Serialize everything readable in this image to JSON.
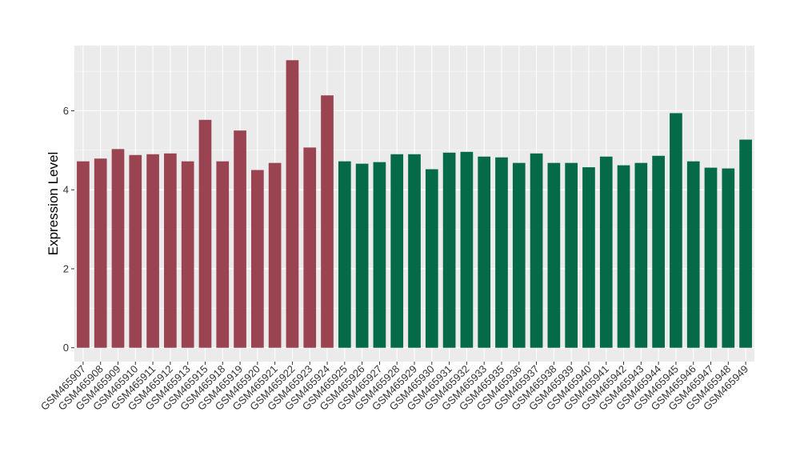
{
  "chart_data": {
    "type": "bar",
    "title": "",
    "xlabel": "",
    "ylabel": "Expression Level",
    "ylim": [
      -0.35,
      7.65
    ],
    "yticks": [
      0,
      2,
      4,
      6
    ],
    "grid": true,
    "legend": "none",
    "colors": {
      "group_a": "#9A4452",
      "group_b": "#046A47",
      "panel_bg": "#EBEBEB",
      "grid": "#FFFFFF"
    },
    "categories": [
      "GSM465907",
      "GSM465908",
      "GSM465909",
      "GSM465910",
      "GSM465911",
      "GSM465912",
      "GSM465913",
      "GSM465915",
      "GSM465918",
      "GSM465919",
      "GSM465920",
      "GSM465921",
      "GSM465922",
      "GSM465923",
      "GSM465924",
      "GSM465925",
      "GSM465926",
      "GSM465927",
      "GSM465928",
      "GSM465929",
      "GSM465930",
      "GSM465931",
      "GSM465932",
      "GSM465933",
      "GSM465935",
      "GSM465936",
      "GSM465937",
      "GSM465938",
      "GSM465939",
      "GSM465940",
      "GSM465941",
      "GSM465942",
      "GSM465943",
      "GSM465944",
      "GSM465945",
      "GSM465946",
      "GSM465947",
      "GSM465948",
      "GSM465949"
    ],
    "values": [
      4.72,
      4.79,
      5.03,
      4.88,
      4.9,
      4.92,
      4.72,
      5.77,
      4.72,
      5.5,
      4.5,
      4.68,
      7.28,
      5.07,
      6.39,
      4.72,
      4.66,
      4.7,
      4.9,
      4.9,
      4.52,
      4.94,
      4.96,
      4.84,
      4.82,
      4.68,
      4.92,
      4.68,
      4.68,
      4.57,
      4.84,
      4.62,
      4.68,
      4.86,
      5.94,
      4.72,
      4.56,
      4.54,
      5.27
    ],
    "groups": [
      "a",
      "a",
      "a",
      "a",
      "a",
      "a",
      "a",
      "a",
      "a",
      "a",
      "a",
      "a",
      "a",
      "a",
      "a",
      "b",
      "b",
      "b",
      "b",
      "b",
      "b",
      "b",
      "b",
      "b",
      "b",
      "b",
      "b",
      "b",
      "b",
      "b",
      "b",
      "b",
      "b",
      "b",
      "b",
      "b",
      "b",
      "b",
      "b"
    ]
  }
}
